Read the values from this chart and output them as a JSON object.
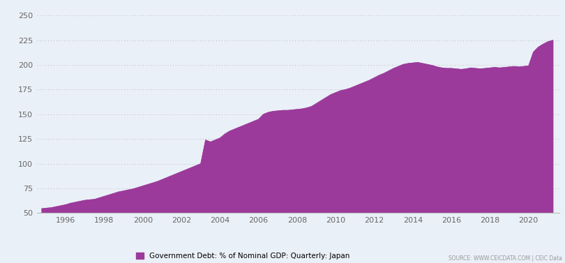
{
  "legend_label": "Government Debt: % of Nominal GDP: Quarterly: Japan",
  "source_text": "SOURCE: WWW.CEICDATA.COM | CEIC Data",
  "fill_color": "#9B3A9B",
  "background_color": "#EAF0F8",
  "plot_bg_color": "#EAF0F8",
  "grid_color": "#AAAAAA",
  "ylim": [
    50,
    255
  ],
  "yticks": [
    50,
    75,
    100,
    125,
    150,
    175,
    200,
    225,
    250
  ],
  "xlim_start": 1994.5,
  "xlim_end": 2021.6,
  "x_ticks": [
    1996,
    1998,
    2000,
    2002,
    2004,
    2006,
    2008,
    2010,
    2012,
    2014,
    2016,
    2018,
    2020
  ],
  "data": {
    "1994Q4": 54.5,
    "1995Q1": 55.0,
    "1995Q2": 55.5,
    "1995Q3": 56.5,
    "1995Q4": 57.5,
    "1996Q1": 58.5,
    "1996Q2": 60.0,
    "1996Q3": 61.0,
    "1996Q4": 62.0,
    "1997Q1": 63.0,
    "1997Q2": 63.5,
    "1997Q3": 64.0,
    "1997Q4": 65.5,
    "1998Q1": 67.0,
    "1998Q2": 68.5,
    "1998Q3": 70.0,
    "1998Q4": 71.5,
    "1999Q1": 72.5,
    "1999Q2": 73.5,
    "1999Q3": 74.5,
    "1999Q4": 76.0,
    "2000Q1": 77.5,
    "2000Q2": 79.0,
    "2000Q3": 80.5,
    "2000Q4": 82.0,
    "2001Q1": 84.0,
    "2001Q2": 86.0,
    "2001Q3": 88.0,
    "2001Q4": 90.0,
    "2002Q1": 92.0,
    "2002Q2": 94.0,
    "2002Q3": 96.0,
    "2002Q4": 98.0,
    "2003Q1": 100.0,
    "2003Q2": 124.0,
    "2003Q3": 122.0,
    "2003Q4": 124.0,
    "2004Q1": 126.0,
    "2004Q2": 130.0,
    "2004Q3": 133.0,
    "2004Q4": 135.0,
    "2005Q1": 137.0,
    "2005Q2": 139.0,
    "2005Q3": 141.0,
    "2005Q4": 143.0,
    "2006Q1": 145.0,
    "2006Q2": 150.0,
    "2006Q3": 152.0,
    "2006Q4": 153.0,
    "2007Q1": 153.5,
    "2007Q2": 154.0,
    "2007Q3": 154.0,
    "2007Q4": 154.5,
    "2008Q1": 155.0,
    "2008Q2": 155.5,
    "2008Q3": 156.5,
    "2008Q4": 158.0,
    "2009Q1": 161.0,
    "2009Q2": 164.0,
    "2009Q3": 167.0,
    "2009Q4": 170.0,
    "2010Q1": 172.0,
    "2010Q2": 174.0,
    "2010Q3": 175.0,
    "2010Q4": 176.5,
    "2011Q1": 178.5,
    "2011Q2": 180.5,
    "2011Q3": 182.5,
    "2011Q4": 184.5,
    "2012Q1": 187.0,
    "2012Q2": 189.5,
    "2012Q3": 191.5,
    "2012Q4": 194.0,
    "2013Q1": 196.5,
    "2013Q2": 198.5,
    "2013Q3": 200.5,
    "2013Q4": 201.5,
    "2014Q1": 202.0,
    "2014Q2": 202.5,
    "2014Q3": 201.5,
    "2014Q4": 200.5,
    "2015Q1": 199.5,
    "2015Q2": 198.0,
    "2015Q3": 197.0,
    "2015Q4": 196.5,
    "2016Q1": 196.5,
    "2016Q2": 196.0,
    "2016Q3": 195.5,
    "2016Q4": 196.0,
    "2017Q1": 197.0,
    "2017Q2": 196.5,
    "2017Q3": 196.0,
    "2017Q4": 196.5,
    "2018Q1": 197.0,
    "2018Q2": 197.5,
    "2018Q3": 197.0,
    "2018Q4": 197.5,
    "2019Q1": 198.0,
    "2019Q2": 198.5,
    "2019Q3": 198.0,
    "2019Q4": 198.5,
    "2020Q1": 199.0,
    "2020Q2": 213.0,
    "2020Q3": 218.0,
    "2020Q4": 221.0,
    "2021Q1": 223.5,
    "2021Q2": 225.0
  }
}
